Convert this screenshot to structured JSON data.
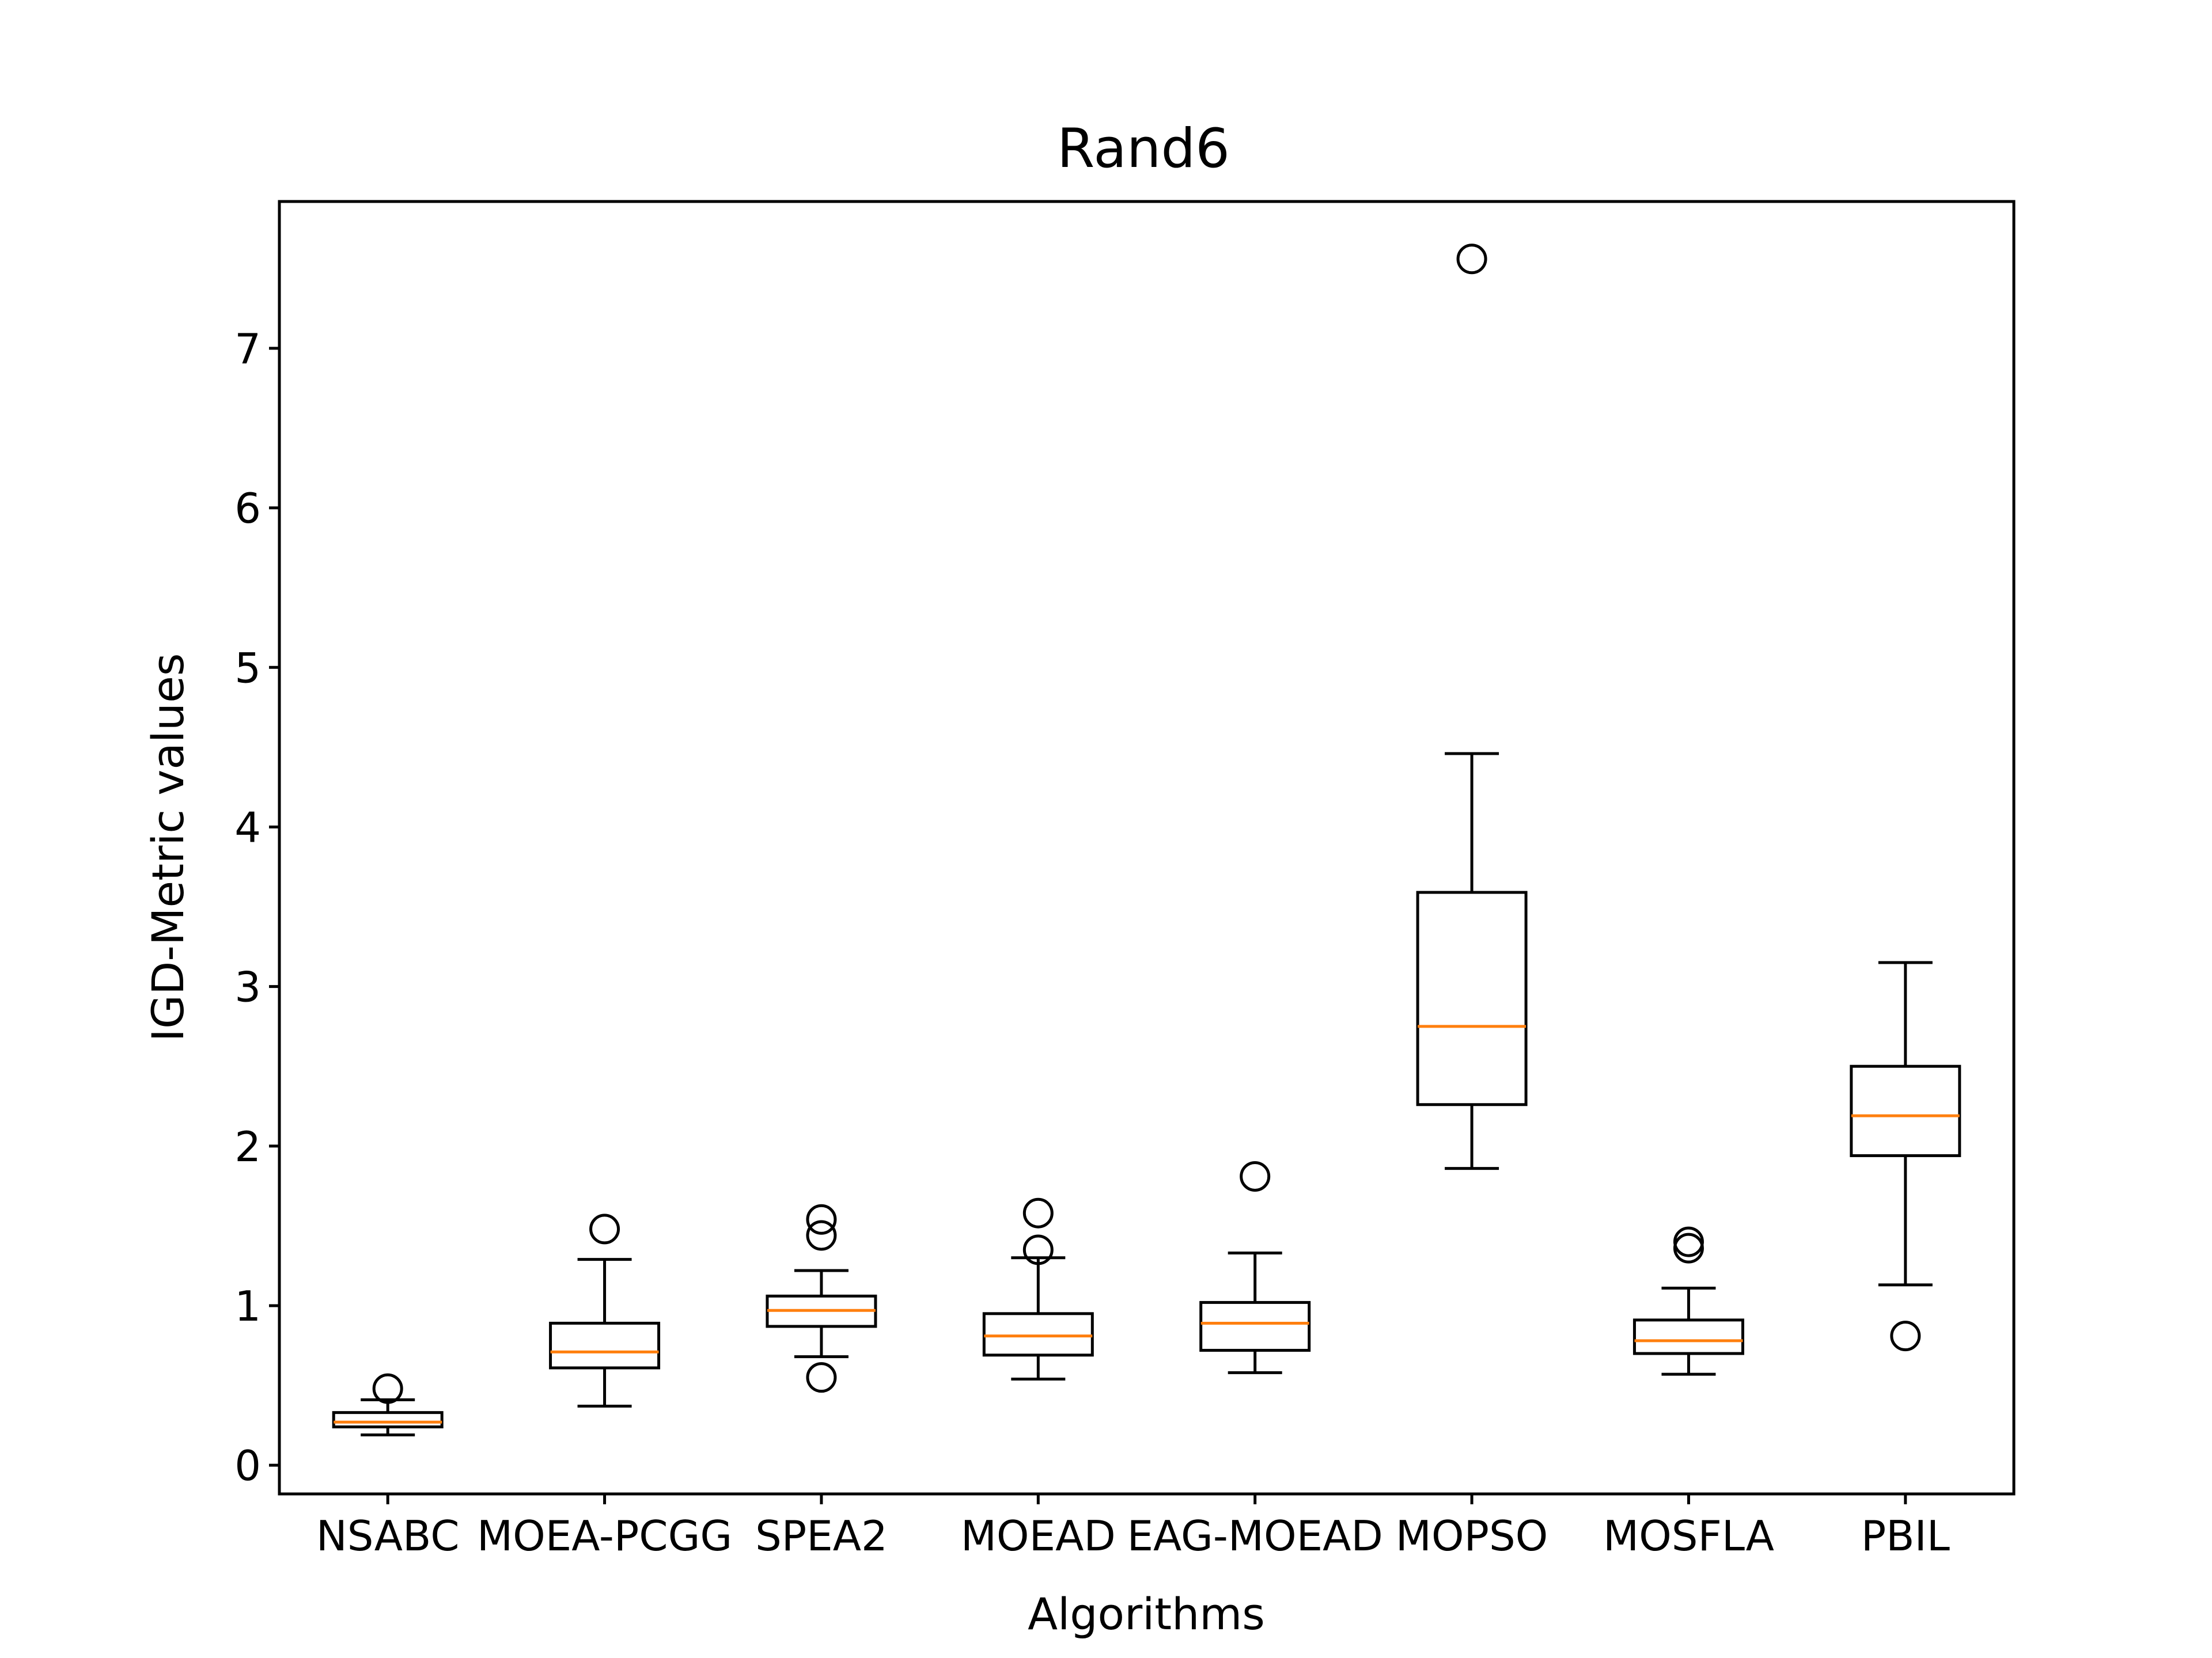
{
  "chart_data": {
    "type": "boxplot",
    "title": "Rand6",
    "xlabel": "Algorithms",
    "ylabel": "IGD-Metric values",
    "ylim": [
      -0.18,
      7.92
    ],
    "yticks": [
      0,
      1,
      2,
      3,
      4,
      5,
      6,
      7
    ],
    "grid": false,
    "legend": "none",
    "colors": {
      "box": "#000000",
      "median": "#ff7f0e",
      "background": "#ffffff"
    },
    "categories": [
      "NSABC",
      "MOEA-PCGG",
      "SPEA2",
      "MOEAD",
      "EAG-MOEAD",
      "MOPSO",
      "MOSFLA",
      "PBIL"
    ],
    "boxes": [
      {
        "whislo": 0.19,
        "q1": 0.24,
        "med": 0.27,
        "q3": 0.33,
        "whishi": 0.41,
        "fliers": [
          0.48
        ]
      },
      {
        "whislo": 0.37,
        "q1": 0.61,
        "med": 0.71,
        "q3": 0.89,
        "whishi": 1.29,
        "fliers": [
          1.48
        ]
      },
      {
        "whislo": 0.68,
        "q1": 0.87,
        "med": 0.97,
        "q3": 1.06,
        "whishi": 1.22,
        "fliers": [
          1.44,
          1.54,
          0.55
        ]
      },
      {
        "whislo": 0.54,
        "q1": 0.69,
        "med": 0.81,
        "q3": 0.95,
        "whishi": 1.3,
        "fliers": [
          1.35,
          1.58
        ]
      },
      {
        "whislo": 0.58,
        "q1": 0.72,
        "med": 0.89,
        "q3": 1.02,
        "whishi": 1.33,
        "fliers": [
          1.81
        ]
      },
      {
        "whislo": 1.86,
        "q1": 2.26,
        "med": 2.75,
        "q3": 3.59,
        "whishi": 4.46,
        "fliers": [
          7.56
        ]
      },
      {
        "whislo": 0.57,
        "q1": 0.7,
        "med": 0.78,
        "q3": 0.91,
        "whishi": 1.11,
        "fliers": [
          1.36,
          1.4
        ]
      },
      {
        "whislo": 1.13,
        "q1": 1.94,
        "med": 2.19,
        "q3": 2.5,
        "whishi": 3.15,
        "fliers": [
          0.81
        ]
      }
    ]
  }
}
